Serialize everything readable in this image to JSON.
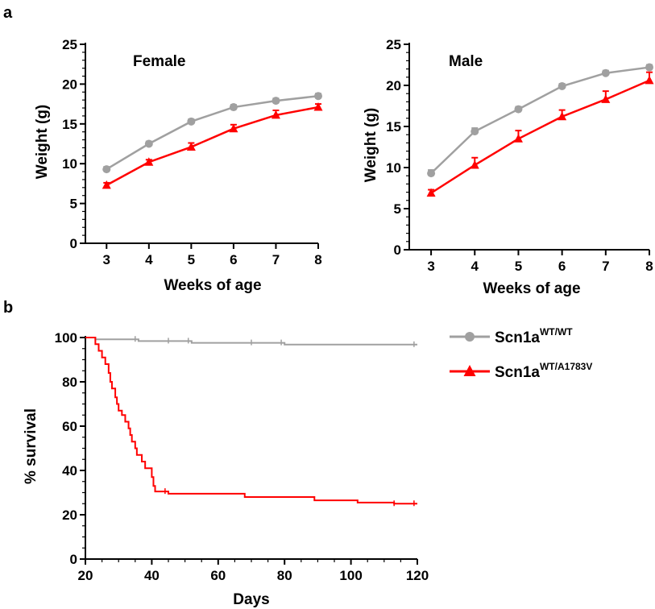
{
  "panels": {
    "a": "a",
    "b": "b"
  },
  "legend": {
    "wt": {
      "base": "Scn1a",
      "sup": "WT/WT"
    },
    "mut": {
      "base": "Scn1a",
      "sup": "WT/A1783V"
    }
  },
  "colors": {
    "wt": "#a0a0a0",
    "mut": "#ff0000"
  },
  "chart_data": [
    {
      "type": "line",
      "title": "Female",
      "xlabel": "Weeks of age",
      "ylabel": "Weight (g)",
      "xlim": [
        2.5,
        8
      ],
      "ylim": [
        0,
        25
      ],
      "x_ticks": [
        3,
        4,
        5,
        6,
        7,
        8
      ],
      "y_ticks": [
        0,
        5,
        10,
        15,
        20,
        25
      ],
      "x": [
        3,
        4,
        5,
        6,
        7,
        8
      ],
      "series": [
        {
          "key": "wt",
          "values": [
            9.3,
            12.5,
            15.3,
            17.1,
            17.9,
            18.5
          ],
          "errors": [
            0.3,
            0.3,
            0.3,
            0.3,
            0.3,
            0.3
          ]
        },
        {
          "key": "mut",
          "values": [
            7.3,
            10.2,
            12.1,
            14.4,
            16.1,
            17.1
          ],
          "errors": [
            0.3,
            0.3,
            0.5,
            0.5,
            0.6,
            0.4
          ]
        }
      ]
    },
    {
      "type": "line",
      "title": "Male",
      "xlabel": "Weeks of age",
      "ylabel": "Weight (g)",
      "xlim": [
        2.5,
        8
      ],
      "ylim": [
        0,
        25
      ],
      "x_ticks": [
        3,
        4,
        5,
        6,
        7,
        8
      ],
      "y_ticks": [
        0,
        5,
        10,
        15,
        20,
        25
      ],
      "x": [
        3,
        4,
        5,
        6,
        7,
        8
      ],
      "series": [
        {
          "key": "wt",
          "values": [
            9.3,
            14.4,
            17.1,
            19.9,
            21.5,
            22.2
          ],
          "errors": [
            0.4,
            0.4,
            0.3,
            0.3,
            0.3,
            0.3
          ]
        },
        {
          "key": "mut",
          "values": [
            6.9,
            10.3,
            13.5,
            16.2,
            18.3,
            20.6
          ],
          "errors": [
            0.4,
            0.9,
            1.0,
            0.8,
            1.0,
            1.0
          ]
        }
      ]
    },
    {
      "type": "line",
      "title": "",
      "xlabel": "Days",
      "ylabel": "% survival",
      "xlim": [
        20,
        120
      ],
      "ylim": [
        0,
        100
      ],
      "x_ticks": [
        20,
        40,
        60,
        80,
        100,
        120
      ],
      "y_ticks": [
        0,
        20,
        40,
        60,
        80,
        100
      ],
      "series": [
        {
          "key": "wt",
          "steps": [
            [
              20,
              100
            ],
            [
              23,
              99.2
            ],
            [
              36,
              98.4
            ],
            [
              52,
              97.6
            ],
            [
              80,
              96.8
            ],
            [
              120,
              96.8
            ]
          ],
          "censors": [
            [
              35,
              99.2
            ],
            [
              45,
              98.4
            ],
            [
              51,
              98.4
            ],
            [
              70,
              97.6
            ],
            [
              79,
              97.6
            ],
            [
              119,
              96.8
            ]
          ]
        },
        {
          "key": "mut",
          "steps": [
            [
              20,
              100
            ],
            [
              23,
              97
            ],
            [
              24,
              94
            ],
            [
              25,
              91
            ],
            [
              26,
              88
            ],
            [
              27,
              84
            ],
            [
              27.5,
              80
            ],
            [
              28,
              77
            ],
            [
              29,
              73
            ],
            [
              29.5,
              70
            ],
            [
              30,
              67
            ],
            [
              31,
              65
            ],
            [
              32,
              62
            ],
            [
              33,
              59
            ],
            [
              33.5,
              56
            ],
            [
              34,
              53
            ],
            [
              35,
              50
            ],
            [
              35.5,
              47
            ],
            [
              37,
              44
            ],
            [
              38,
              41
            ],
            [
              40,
              37
            ],
            [
              40.5,
              33
            ],
            [
              41,
              30.5
            ],
            [
              45,
              29.5
            ],
            [
              68,
              28
            ],
            [
              89,
              26.5
            ],
            [
              102,
              25.5
            ],
            [
              113,
              25
            ],
            [
              120,
              25
            ]
          ],
          "censors": [
            [
              44,
              30.5
            ],
            [
              113,
              25
            ],
            [
              119,
              25
            ]
          ]
        }
      ]
    }
  ]
}
